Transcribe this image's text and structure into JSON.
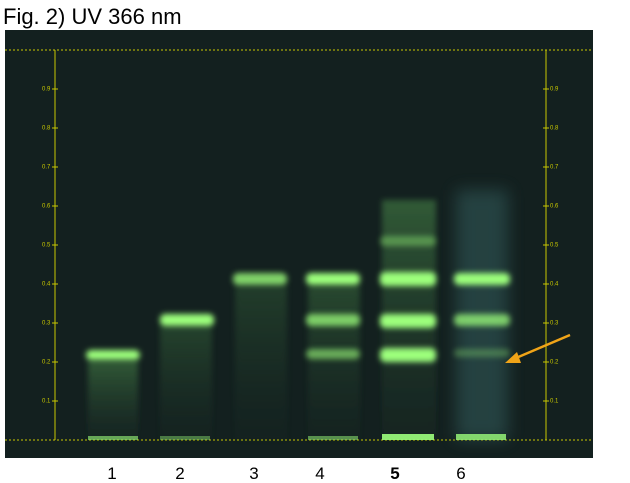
{
  "title": "Fig. 2) UV 366 nm",
  "scale": {
    "ticks": [
      0.1,
      0.2,
      0.3,
      0.4,
      0.5,
      0.6,
      0.7,
      0.8,
      0.9
    ]
  },
  "lanes": [
    "1",
    "2",
    "3",
    "4",
    "5",
    "6"
  ]
}
